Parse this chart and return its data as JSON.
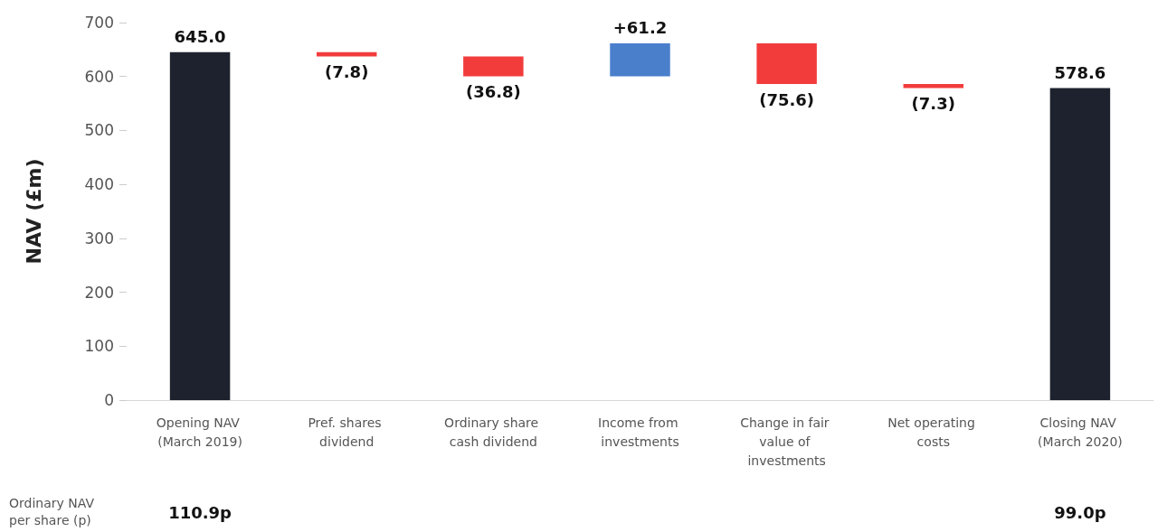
{
  "chart_data": {
    "type": "bar",
    "ylabel": "NAV (£m)",
    "categories": [
      "Opening NAV (March 2019)",
      "Pref. shares dividend",
      "Ordinary share cash dividend",
      "Income from investments",
      "Change in fair value of investments",
      "Net operating costs",
      "Closing NAV (March 2020)"
    ],
    "values": [
      645.0,
      -7.8,
      -36.8,
      61.2,
      -75.6,
      -7.3,
      578.6
    ],
    "base": [
      0,
      645.0,
      637.2,
      600.4,
      661.6,
      586.0,
      0
    ],
    "colors": [
      "#1d222e",
      "#f23c3c",
      "#f23c3c",
      "#4a7fcc",
      "#f23c3c",
      "#f23c3c",
      "#1d222e"
    ],
    "value_labels": [
      "645.0",
      "(7.8)",
      "(36.8)",
      "+61.2",
      "(75.6)",
      "(7.3)",
      "578.6"
    ],
    "ylim": [
      0,
      700
    ],
    "yticks": [
      0,
      100,
      200,
      300,
      400,
      500,
      600,
      700
    ],
    "grid": false,
    "annotations": [
      "Ordinary NAV per share (p)",
      "110.9p",
      "99.0p"
    ]
  }
}
